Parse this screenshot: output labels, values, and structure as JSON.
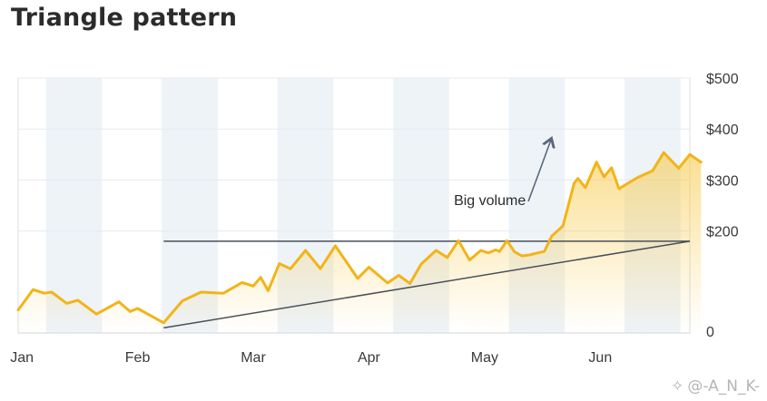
{
  "title": "Triangle pattern",
  "watermark": "@-A_N_K-",
  "colors": {
    "line": "#f2b418",
    "fill": "#f7c948",
    "band": "#eef3f8",
    "resistance": "#4a5059",
    "support": "#4a5059",
    "arrow": "#5a6878"
  },
  "chart_data": {
    "type": "area",
    "xlabel": "",
    "ylabel": "",
    "x_axis": {
      "ticks": [
        "Jan",
        "Feb",
        "Mar",
        "Apr",
        "May",
        "Jun"
      ],
      "range": [
        0,
        180
      ]
    },
    "y_axis": {
      "range": [
        0,
        500
      ],
      "ticks": [
        {
          "value": 0,
          "label": "0"
        },
        {
          "value": 200,
          "label": "$200"
        },
        {
          "value": 300,
          "label": "$300"
        },
        {
          "value": 400,
          "label": "$400"
        },
        {
          "value": 500,
          "label": "$500"
        }
      ],
      "side": "right"
    },
    "series": [
      {
        "values": [
          [
            0,
            45
          ],
          [
            4,
            85
          ],
          [
            7,
            78
          ],
          [
            9,
            80
          ],
          [
            13,
            58
          ],
          [
            16,
            64
          ],
          [
            21,
            37
          ],
          [
            27,
            61
          ],
          [
            30,
            42
          ],
          [
            32,
            48
          ],
          [
            39,
            20
          ],
          [
            44,
            63
          ],
          [
            49,
            80
          ],
          [
            55,
            78
          ],
          [
            60,
            99
          ],
          [
            63,
            92
          ],
          [
            65,
            109
          ],
          [
            67,
            83
          ],
          [
            70,
            136
          ],
          [
            73,
            126
          ],
          [
            77,
            162
          ],
          [
            81,
            126
          ],
          [
            85,
            171
          ],
          [
            91,
            107
          ],
          [
            94,
            129
          ],
          [
            99,
            98
          ],
          [
            102,
            113
          ],
          [
            105,
            97
          ],
          [
            108,
            135
          ],
          [
            112,
            162
          ],
          [
            115,
            148
          ],
          [
            118,
            181
          ],
          [
            121,
            143
          ],
          [
            124,
            162
          ],
          [
            126,
            157
          ],
          [
            128,
            163
          ],
          [
            129,
            160
          ],
          [
            131,
            181
          ],
          [
            133,
            159
          ],
          [
            135,
            151
          ],
          [
            137,
            153
          ],
          [
            141,
            160
          ],
          [
            143,
            190
          ],
          [
            146,
            210
          ],
          [
            149,
            294
          ],
          [
            150,
            303
          ],
          [
            152,
            285
          ],
          [
            155,
            335
          ],
          [
            157,
            306
          ],
          [
            159,
            324
          ],
          [
            161,
            283
          ],
          [
            166,
            305
          ],
          [
            170,
            318
          ],
          [
            173,
            354
          ],
          [
            177,
            323
          ],
          [
            180,
            350
          ],
          [
            183,
            335
          ]
        ]
      }
    ],
    "resistance_line": {
      "x": [
        39,
        180
      ],
      "y": [
        180,
        180
      ]
    },
    "support_line": {
      "x": [
        39,
        180
      ],
      "y": [
        10,
        180
      ]
    },
    "annotations": [
      {
        "text": "Big volume",
        "x": 137,
        "y": 262
      }
    ],
    "grid": "horizontal",
    "background_bands": "alternating monthly"
  }
}
